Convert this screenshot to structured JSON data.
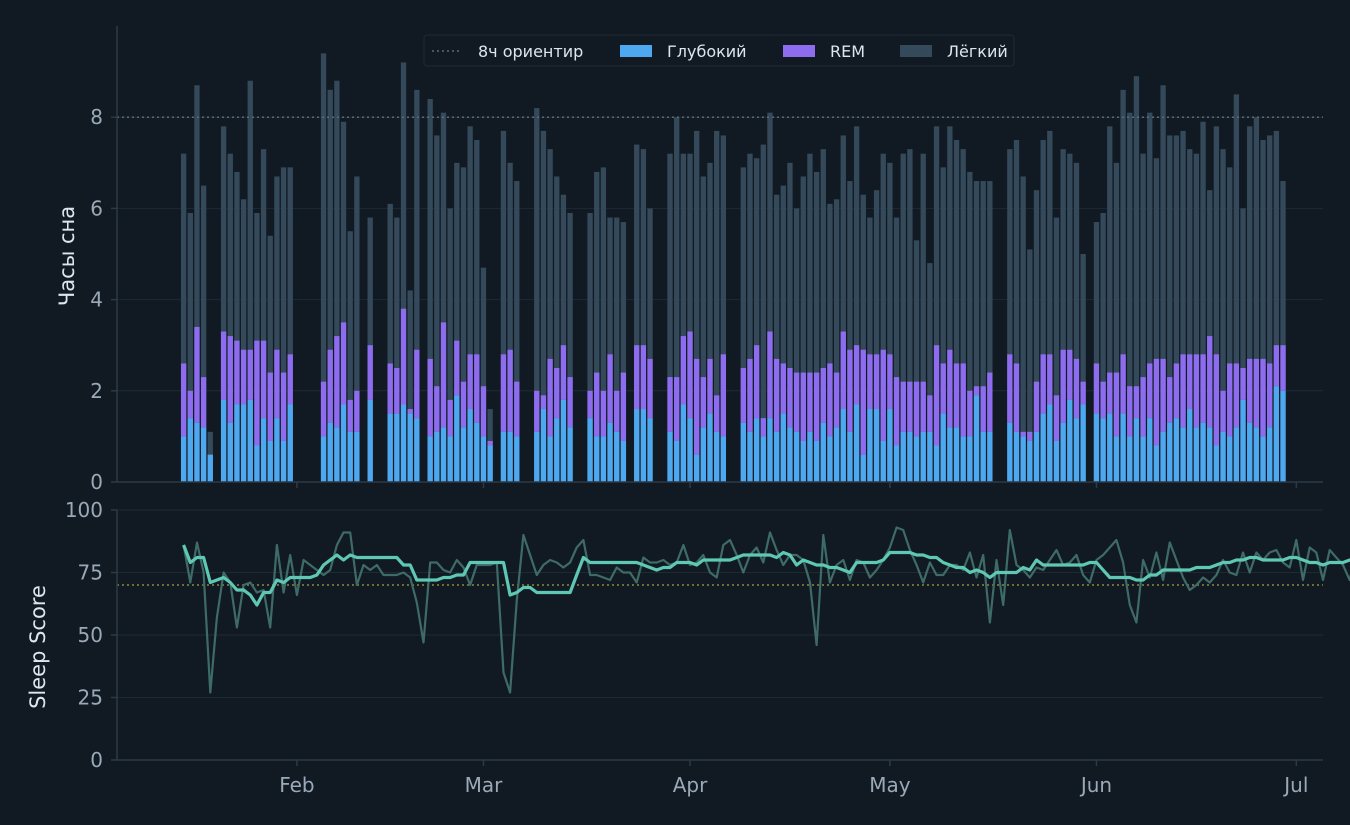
{
  "colors": {
    "background": "#111923",
    "axis": "#2c3a47",
    "tick_text": "#9aa9b8",
    "label_text": "#dde6ee",
    "deep": "#4ea8f0",
    "rem": "#8e6cf0",
    "light": "#34495a",
    "guide": "#5b6b78",
    "threshold": "#8a8a3a",
    "score_raw": "#3e6b66",
    "score_avg": "#5ec8b4"
  },
  "chart_data": [
    {
      "type": "bar",
      "stacked": true,
      "ylabel": "Часы сна",
      "ylim": [
        0,
        10
      ],
      "yticks": [
        0,
        2,
        4,
        6,
        8
      ],
      "grid": true,
      "legend_position": "top-center",
      "reference_line": {
        "value": 8,
        "label": "8ч ориентир"
      },
      "series_labels": {
        "deep": "Глубокий",
        "rem": "REM",
        "light": "Лёгкий"
      },
      "x_start": "2025-01-15",
      "xlim": [
        "2025-01-05",
        "2025-07-05"
      ],
      "xticks": [
        {
          "date": "2025-02-01",
          "label": "Feb"
        },
        {
          "date": "2025-03-01",
          "label": "Mar"
        },
        {
          "date": "2025-04-01",
          "label": "Apr"
        },
        {
          "date": "2025-05-01",
          "label": "May"
        },
        {
          "date": "2025-06-01",
          "label": "Jun"
        },
        {
          "date": "2025-07-01",
          "label": "Jul"
        }
      ],
      "total": [
        7.2,
        5.9,
        8.7,
        6.5,
        1.1,
        null,
        7.8,
        7.2,
        6.8,
        6.2,
        8.8,
        5.9,
        7.3,
        5.4,
        6.7,
        6.9,
        6.9,
        null,
        null,
        null,
        null,
        9.4,
        8.6,
        8.8,
        7.9,
        5.5,
        6.7,
        null,
        5.8,
        null,
        null,
        6.1,
        5.8,
        9.2,
        4.2,
        8.6,
        null,
        8.4,
        7.6,
        8.1,
        6.0,
        7.0,
        6.9,
        7.8,
        7.5,
        4.7,
        1.6,
        null,
        7.7,
        7.0,
        6.6,
        null,
        null,
        8.2,
        7.7,
        7.3,
        6.7,
        6.3,
        5.9,
        null,
        null,
        5.9,
        6.8,
        6.9,
        5.8,
        5.8,
        5.7,
        null,
        7.4,
        7.3,
        6.0,
        null,
        null,
        7.2,
        8.0,
        7.2,
        7.2,
        7.7,
        6.7,
        7.0,
        7.7,
        7.6,
        null,
        null,
        6.9,
        7.2,
        7.1,
        7.4,
        8.1,
        6.3,
        6.5,
        7.0,
        6.0,
        6.7,
        7.2,
        6.8,
        7.3,
        6.1,
        6.2,
        7.6,
        6.6,
        7.8,
        6.3,
        5.8,
        6.4,
        7.2,
        7.0,
        5.8,
        7.2,
        7.3,
        5.3,
        7.2,
        4.8,
        7.8,
        6.9,
        7.8,
        7.5,
        7.3,
        6.8,
        6.6,
        6.6,
        6.6,
        null,
        null,
        7.3,
        7.5,
        6.7,
        5.1,
        6.4,
        7.5,
        7.7,
        5.8,
        7.3,
        7.2,
        7.0,
        5.0,
        null,
        5.7,
        5.9,
        7.8,
        7.0,
        8.6,
        8.1,
        8.9,
        7.2,
        8.1,
        7.1,
        8.7,
        7.6,
        7.6,
        7.7,
        7.3,
        7.2,
        7.9,
        6.4,
        7.8,
        7.3,
        6.9,
        8.5,
        6.0,
        7.8,
        8.0,
        7.5,
        7.6,
        7.7,
        6.6
      ],
      "deep": [
        1.0,
        1.4,
        1.3,
        1.2,
        0.6,
        null,
        1.8,
        1.3,
        1.7,
        1.7,
        1.8,
        0.8,
        1.4,
        0.9,
        1.4,
        0.9,
        1.7,
        null,
        null,
        null,
        null,
        1.0,
        1.3,
        1.2,
        1.7,
        1.1,
        1.1,
        null,
        1.8,
        null,
        null,
        1.5,
        1.5,
        1.7,
        1.5,
        1.4,
        null,
        1.0,
        1.1,
        1.2,
        1.0,
        1.9,
        1.2,
        1.6,
        1.3,
        1.0,
        0.8,
        null,
        1.1,
        1.1,
        1.0,
        null,
        null,
        1.1,
        1.6,
        1.0,
        1.4,
        1.8,
        1.2,
        null,
        null,
        1.4,
        1.0,
        1.0,
        1.3,
        1.1,
        0.9,
        null,
        1.6,
        1.6,
        1.4,
        null,
        null,
        1.1,
        0.9,
        1.7,
        1.4,
        0.6,
        1.2,
        1.5,
        1.1,
        1.0,
        null,
        null,
        1.3,
        1.1,
        1.4,
        1.0,
        1.4,
        1.1,
        1.5,
        1.2,
        1.1,
        0.9,
        1.1,
        0.9,
        1.3,
        1.0,
        1.2,
        1.6,
        1.1,
        1.7,
        0.6,
        1.6,
        1.6,
        0.9,
        1.6,
        0.8,
        1.1,
        1.1,
        1.0,
        1.1,
        1.1,
        0.8,
        1.5,
        1.2,
        1.2,
        1.0,
        1.0,
        1.9,
        1.1,
        1.1,
        null,
        null,
        1.3,
        1.1,
        1.0,
        0.9,
        1.1,
        1.5,
        1.7,
        0.9,
        1.3,
        1.8,
        1.4,
        1.7,
        null,
        1.5,
        1.4,
        1.5,
        1.0,
        1.5,
        1.0,
        1.4,
        1.0,
        1.4,
        0.8,
        1.1,
        1.3,
        1.4,
        1.2,
        1.6,
        1.2,
        1.3,
        1.2,
        0.8,
        1.1,
        1.0,
        1.2,
        1.8,
        1.3,
        1.2,
        1.0,
        1.2,
        2.1,
        2.0
      ],
      "rem": [
        1.6,
        0.6,
        2.1,
        1.1,
        0.0,
        null,
        1.5,
        1.9,
        1.4,
        1.2,
        1.1,
        2.3,
        1.7,
        1.5,
        1.5,
        1.5,
        1.1,
        null,
        null,
        null,
        null,
        1.2,
        1.6,
        2.0,
        1.8,
        0.7,
        0.9,
        null,
        1.2,
        null,
        null,
        1.1,
        1.0,
        2.1,
        0.1,
        1.5,
        null,
        1.7,
        1.0,
        2.3,
        0.8,
        1.2,
        1.0,
        1.2,
        1.5,
        1.1,
        0.1,
        null,
        1.7,
        1.8,
        1.2,
        null,
        null,
        0.9,
        0.3,
        1.7,
        1.1,
        1.2,
        1.1,
        null,
        null,
        0.6,
        1.4,
        1.0,
        1.5,
        0.9,
        1.5,
        null,
        1.4,
        1.4,
        1.3,
        null,
        null,
        1.2,
        1.4,
        1.5,
        1.9,
        2.1,
        1.1,
        1.2,
        0.8,
        1.8,
        null,
        null,
        1.2,
        1.6,
        1.6,
        0.4,
        1.9,
        1.6,
        1.1,
        1.3,
        1.3,
        1.5,
        1.3,
        1.5,
        1.2,
        1.6,
        1.2,
        1.7,
        1.8,
        1.3,
        2.3,
        1.2,
        1.2,
        2.0,
        1.2,
        1.5,
        1.1,
        1.1,
        1.2,
        1.1,
        0.8,
        2.2,
        1.1,
        1.7,
        1.4,
        1.6,
        1.0,
        0.2,
        1.0,
        1.3,
        null,
        null,
        1.5,
        1.5,
        0.1,
        0.2,
        1.1,
        1.3,
        1.1,
        1.0,
        1.6,
        1.1,
        1.3,
        0.5,
        null,
        1.1,
        0.8,
        0.9,
        1.4,
        1.3,
        1.1,
        0.7,
        1.3,
        1.2,
        1.9,
        1.6,
        1.0,
        1.2,
        1.6,
        1.2,
        1.6,
        1.5,
        2.0,
        2.0,
        0.9,
        1.6,
        1.4,
        0.7,
        1.4,
        1.5,
        1.7,
        1.4,
        0.9,
        1.0
      ]
    },
    {
      "type": "line",
      "ylabel": "Sleep Score",
      "ylim": [
        0,
        100
      ],
      "yticks": [
        0,
        25,
        50,
        75,
        100
      ],
      "grid": true,
      "threshold": 70,
      "series": [
        {
          "key": "raw",
          "values": [
            86,
            71,
            87,
            75,
            27,
            57,
            75,
            71,
            53,
            70,
            71,
            67,
            68,
            53,
            86,
            67,
            82,
            66,
            80,
            78,
            76,
            74,
            76,
            86,
            91,
            91,
            70,
            78,
            76,
            78,
            74,
            74,
            74,
            75,
            73,
            63,
            47,
            79,
            79,
            76,
            75,
            80,
            77,
            70,
            78,
            78,
            78,
            79,
            35,
            27,
            64,
            90,
            82,
            74,
            78,
            80,
            79,
            77,
            79,
            85,
            88,
            74,
            74,
            73,
            72,
            77,
            75,
            75,
            71,
            81,
            79,
            79,
            80,
            78,
            79,
            86,
            78,
            79,
            82,
            75,
            73,
            86,
            88,
            82,
            75,
            82,
            85,
            79,
            91,
            84,
            78,
            82,
            82,
            80,
            71,
            46,
            90,
            71,
            78,
            80,
            72,
            80,
            79,
            73,
            76,
            80,
            85,
            93,
            92,
            84,
            78,
            71,
            79,
            74,
            74,
            78,
            78,
            76,
            83,
            73,
            82,
            55,
            80,
            62,
            92,
            78,
            76,
            73,
            77,
            76,
            80,
            84,
            78,
            79,
            82,
            74,
            71,
            80,
            82,
            85,
            88,
            79,
            62,
            55,
            80,
            73,
            83,
            72,
            87,
            80,
            73,
            68,
            70,
            73,
            71,
            74,
            80,
            75,
            74,
            83,
            75,
            83,
            80,
            83,
            84,
            79,
            77,
            88,
            72,
            85,
            83,
            72,
            84,
            81,
            78,
            72,
            83,
            83,
            77
          ]
        },
        {
          "key": "avg",
          "values": [
            86,
            79,
            81,
            81,
            71,
            72,
            73,
            71,
            68,
            68,
            66,
            62,
            67,
            67,
            72,
            71,
            73,
            73,
            73,
            73,
            74,
            78,
            80,
            82,
            80,
            82,
            81,
            81,
            81,
            81,
            81,
            81,
            81,
            78,
            78,
            72,
            72,
            72,
            72,
            73,
            73,
            74,
            74,
            79,
            79,
            79,
            79,
            79,
            79,
            66,
            67,
            69,
            69,
            67,
            67,
            67,
            67,
            67,
            67,
            74,
            81,
            79,
            79,
            79,
            79,
            79,
            79,
            79,
            79,
            78,
            77,
            76,
            77,
            77,
            79,
            79,
            79,
            78,
            80,
            80,
            80,
            80,
            80,
            81,
            82,
            82,
            82,
            82,
            82,
            81,
            83,
            82,
            78,
            80,
            79,
            78,
            78,
            77,
            77,
            76,
            75,
            79,
            79,
            79,
            79,
            80,
            83,
            83,
            83,
            83,
            82,
            82,
            81,
            81,
            79,
            78,
            77,
            77,
            75,
            76,
            75,
            73,
            75,
            75,
            75,
            75,
            77,
            76,
            80,
            78,
            78,
            78,
            78,
            78,
            78,
            78,
            79,
            79,
            76,
            73,
            73,
            73,
            73,
            72,
            72,
            74,
            74,
            76,
            76,
            76,
            76,
            76,
            77,
            77,
            77,
            78,
            79,
            79,
            80,
            80,
            81,
            81,
            80,
            80,
            80,
            80,
            81,
            81,
            80,
            79,
            79,
            78,
            79,
            79,
            79,
            80,
            79,
            80,
            79
          ]
        }
      ]
    }
  ]
}
